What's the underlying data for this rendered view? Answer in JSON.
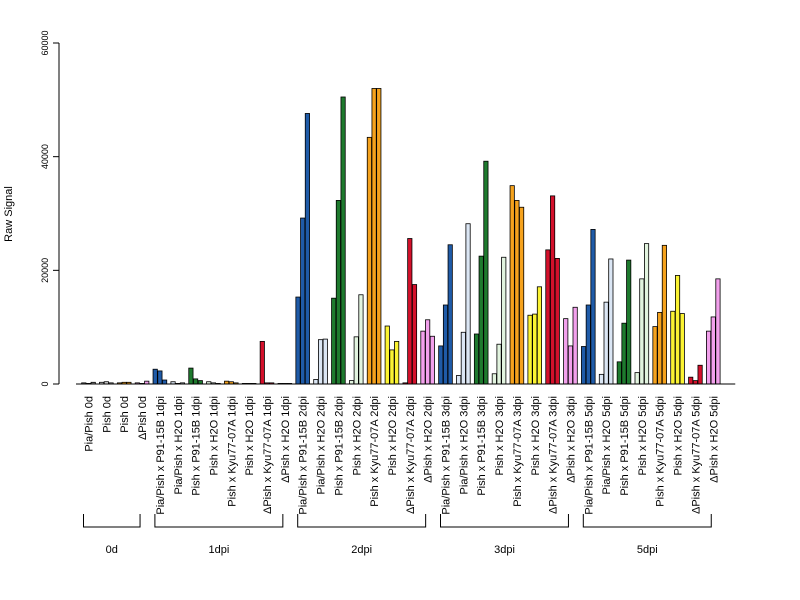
{
  "chart_data": {
    "type": "bar",
    "ylabel": "Raw Signal",
    "ylim": [
      0,
      60000
    ],
    "yticks": [
      0,
      20000,
      40000,
      60000
    ],
    "group_labels": [
      "0d",
      "1dpi",
      "2dpi",
      "3dpi",
      "5dpi"
    ],
    "colors": {
      "blue": "#1f5ba8",
      "lightblue": "#dbe6f4",
      "green": "#1e7a2e",
      "lightgreen": "#e2f4df",
      "orange": "#f5a21d",
      "yellow": "#fbf332",
      "red": "#d4102b",
      "pink": "#f2a0ec",
      "grey": "#9a9a9a",
      "lightgrey": "#d8d8d8"
    },
    "categories": [
      {
        "label": "Pia/Pish 0d",
        "group": 0,
        "color": "grey",
        "values": [
          200,
          100,
          300
        ]
      },
      {
        "label": "Pish 0d",
        "group": 0,
        "color": "lightgrey",
        "values": [
          300,
          400,
          200
        ]
      },
      {
        "label": "Pish 0d",
        "group": 0,
        "color": "orange",
        "values": [
          200,
          300,
          300
        ]
      },
      {
        "label": "ΔPish 0d",
        "group": 0,
        "color": "pink",
        "values": [
          200,
          100,
          500
        ]
      },
      {
        "label": "Pia/Pish x P91-15B 1dpi",
        "group": 1,
        "color": "blue",
        "values": [
          2600,
          2300,
          700
        ]
      },
      {
        "label": "Pia/Pish x H2O 1dpi",
        "group": 1,
        "color": "lightblue",
        "values": [
          400,
          100,
          200
        ]
      },
      {
        "label": "Pish x P91-15B 1dpi",
        "group": 1,
        "color": "green",
        "values": [
          2800,
          900,
          600
        ]
      },
      {
        "label": "Pish x H2O 1dpi",
        "group": 1,
        "color": "lightgreen",
        "values": [
          400,
          200,
          100
        ]
      },
      {
        "label": "Pish x Kyu77-07A 1dpi",
        "group": 1,
        "color": "orange",
        "values": [
          500,
          400,
          200
        ]
      },
      {
        "label": "Pish x H2O 1dpi",
        "group": 1,
        "color": "yellow",
        "values": [
          100,
          100,
          100
        ]
      },
      {
        "label": "ΔPish x Kyu77-07A 1dpi",
        "group": 1,
        "color": "red",
        "values": [
          7500,
          200,
          200
        ]
      },
      {
        "label": "ΔPish x H2O 1dpi",
        "group": 1,
        "color": "pink",
        "values": [
          100,
          100,
          100
        ]
      },
      {
        "label": "Pia/Pish x P91-15B 2dpi",
        "group": 2,
        "color": "blue",
        "values": [
          15300,
          29200,
          47600
        ]
      },
      {
        "label": "Pia/Pish x H2O 2dpi",
        "group": 2,
        "color": "lightblue",
        "values": [
          800,
          7800,
          7900
        ]
      },
      {
        "label": "Pish x P91-15B 2dpi",
        "group": 2,
        "color": "green",
        "values": [
          15100,
          32300,
          50500
        ]
      },
      {
        "label": "Pish x H2O 2dpi",
        "group": 2,
        "color": "lightgreen",
        "values": [
          600,
          8300,
          15700
        ]
      },
      {
        "label": "Pish x Kyu77-07A 2dpi",
        "group": 2,
        "color": "orange",
        "values": [
          43400,
          52000,
          52000
        ]
      },
      {
        "label": "Pish x H2O 2dpi",
        "group": 2,
        "color": "yellow",
        "values": [
          10200,
          6000,
          7500
        ]
      },
      {
        "label": "ΔPish x Kyu77-07A 2dpi",
        "group": 2,
        "color": "red",
        "values": [
          200,
          25600,
          17500
        ]
      },
      {
        "label": "ΔPish x H2O 2dpi",
        "group": 2,
        "color": "pink",
        "values": [
          9300,
          11300,
          8400
        ]
      },
      {
        "label": "Pia/Pish x P91-15B 3dpi",
        "group": 3,
        "color": "blue",
        "values": [
          6700,
          13900,
          24500
        ]
      },
      {
        "label": "Pia/Pish x H2O 3dpi",
        "group": 3,
        "color": "lightblue",
        "values": [
          1500,
          9100,
          28200
        ]
      },
      {
        "label": "Pish x P91-15B 3dpi",
        "group": 3,
        "color": "green",
        "values": [
          8800,
          22500,
          39200
        ]
      },
      {
        "label": "Pish x H2O 3dpi",
        "group": 3,
        "color": "lightgreen",
        "values": [
          1800,
          7000,
          22300
        ]
      },
      {
        "label": "Pish x Kyu77-07A 3dpi",
        "group": 3,
        "color": "orange",
        "values": [
          34900,
          32300,
          31100
        ]
      },
      {
        "label": "Pish x H2O 3dpi",
        "group": 3,
        "color": "yellow",
        "values": [
          12100,
          12300,
          17100
        ]
      },
      {
        "label": "ΔPish x Kyu77-07A 3dpi",
        "group": 3,
        "color": "red",
        "values": [
          23600,
          33100,
          22100
        ]
      },
      {
        "label": "ΔPish x H2O 3dpi",
        "group": 3,
        "color": "pink",
        "values": [
          11500,
          6700,
          13500
        ]
      },
      {
        "label": "Pia/Pish x P91-15B 5dpi",
        "group": 4,
        "color": "blue",
        "values": [
          6600,
          13900,
          27200
        ]
      },
      {
        "label": "Pia/Pish x H2O 5dpi",
        "group": 4,
        "color": "lightblue",
        "values": [
          1700,
          14400,
          22000
        ]
      },
      {
        "label": "Pish x P91-15B 5dpi",
        "group": 4,
        "color": "green",
        "values": [
          3900,
          10700,
          21800
        ]
      },
      {
        "label": "Pish x H2O 5dpi",
        "group": 4,
        "color": "lightgreen",
        "values": [
          2000,
          18500,
          24700
        ]
      },
      {
        "label": "Pish x Kyu77-07A 5dpi",
        "group": 4,
        "color": "orange",
        "values": [
          10100,
          12600,
          24400
        ]
      },
      {
        "label": "Pish x H2O 5dpi",
        "group": 4,
        "color": "yellow",
        "values": [
          12800,
          19100,
          12400
        ]
      },
      {
        "label": "ΔPish x Kyu77-07A 5dpi",
        "group": 4,
        "color": "red",
        "values": [
          1200,
          600,
          3300
        ]
      },
      {
        "label": "ΔPish x H2O 5dpi",
        "group": 4,
        "color": "pink",
        "values": [
          9300,
          11800,
          18500
        ]
      }
    ]
  }
}
